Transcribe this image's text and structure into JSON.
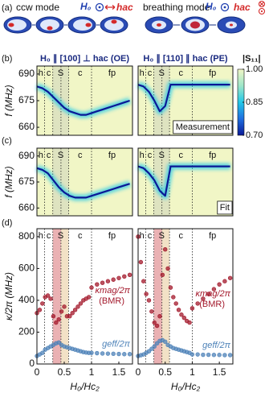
{
  "schematic": {
    "label": "(a)",
    "ccw": "ccw mode",
    "breathing": "breathing mode",
    "field": "H₀",
    "ac": "hac"
  },
  "panels": [
    "(b)",
    "(c)",
    "(d)"
  ],
  "colorbar": {
    "label": "|S₁₁|",
    "lim": [
      0.7,
      1.0
    ],
    "ticks": [
      {
        "value": 1,
        "label": "1.00"
      },
      0.85,
      {
        "value": 0.7,
        "label": "0.70"
      }
    ],
    "colors": [
      "#0a1896",
      "#1f6fe0",
      "#22c8e8",
      "#9ee6c8",
      "#f1f6c6"
    ]
  },
  "field_regions": [
    {
      "label": "h",
      "range": [
        0,
        0.14
      ]
    },
    {
      "label": "c",
      "range": [
        0.14,
        0.29
      ]
    },
    {
      "label": "S",
      "range": [
        0.29,
        0.58
      ]
    },
    {
      "label": "c",
      "range": [
        0.58,
        1.0
      ]
    },
    {
      "label": "fp",
      "range": [
        1.0,
        1.75
      ]
    }
  ],
  "bands": [
    {
      "range": [
        0.29,
        0.44
      ],
      "color": "#e6a3a6"
    },
    {
      "range": [
        0.44,
        0.58
      ],
      "color": "#f0dcbc"
    }
  ],
  "chart_data": [
    {
      "type": "line",
      "title": "H₀ ∥ [100] ⊥ hac (OE)",
      "ylabel": "f (MHz)",
      "x": [
        0,
        0.1,
        0.2,
        0.3,
        0.4,
        0.5,
        0.6,
        0.7,
        0.8,
        0.9,
        1.0,
        1.1,
        1.2,
        1.3,
        1.4,
        1.5,
        1.6,
        1.7
      ],
      "values": [
        683,
        682,
        680,
        677,
        674,
        671,
        669,
        668,
        667,
        667,
        668,
        669,
        670,
        671,
        672,
        673,
        674,
        675
      ],
      "xlim": [
        0,
        1.75
      ],
      "ylim": [
        655.5,
        694.5
      ],
      "yticks": [
        660,
        675,
        690
      ]
    },
    {
      "type": "line",
      "title": "H₀ ∥ [110] ∥ hac (PE)",
      "annotation": "Measurement",
      "x": [
        0,
        0.1,
        0.2,
        0.3,
        0.4,
        0.5,
        0.6,
        0.7,
        0.8,
        0.9,
        1.0,
        1.1,
        1.2,
        1.3,
        1.4,
        1.5,
        1.6,
        1.7
      ],
      "values": [
        684,
        683,
        680,
        675,
        669,
        672,
        684,
        684,
        684,
        684,
        684,
        684,
        684,
        684,
        684,
        684,
        684,
        684
      ],
      "xlim": [
        0,
        1.75
      ],
      "ylim": [
        655.5,
        694.5
      ]
    },
    {
      "type": "line",
      "ylabel": "f (MHz)",
      "x": [
        0,
        0.1,
        0.2,
        0.3,
        0.4,
        0.5,
        0.6,
        0.7,
        0.8,
        0.9,
        1.0,
        1.1,
        1.2,
        1.3,
        1.4,
        1.5,
        1.6,
        1.7
      ],
      "values": [
        683,
        682,
        680,
        676,
        672,
        669,
        667,
        666,
        666,
        666,
        667,
        668,
        669,
        670,
        671,
        672,
        673,
        674
      ],
      "xlim": [
        0,
        1.75
      ],
      "ylim": [
        655.5,
        694.5
      ],
      "yticks": [
        660,
        675,
        690
      ]
    },
    {
      "type": "line",
      "annotation": "Fit",
      "x": [
        0,
        0.1,
        0.2,
        0.3,
        0.4,
        0.5,
        0.6,
        0.7,
        0.8,
        0.9,
        1.0,
        1.1,
        1.2,
        1.3,
        1.4,
        1.5,
        1.6,
        1.7
      ],
      "values": [
        684,
        683,
        680,
        676,
        670,
        667,
        684,
        684,
        684,
        684,
        684,
        684,
        684,
        684,
        684,
        684,
        684,
        684
      ],
      "xlim": [
        0,
        1.75
      ],
      "ylim": [
        655.5,
        694.5
      ]
    },
    {
      "type": "scatter",
      "ylabel": "κ/2π (MHz)",
      "xlabel": "H₀/Hc₂",
      "x": [
        0,
        0.05,
        0.1,
        0.15,
        0.2,
        0.25,
        0.3,
        0.35,
        0.4,
        0.45,
        0.5,
        0.55,
        0.6,
        0.65,
        0.7,
        0.75,
        0.8,
        0.85,
        0.9,
        0.95,
        1.0,
        1.1,
        1.2,
        1.3,
        1.4,
        1.5,
        1.6,
        1.7
      ],
      "series": [
        {
          "name": "κmag/2π",
          "note": "(BMR)",
          "color": "#a3182b",
          "values": [
            320,
            340,
            380,
            420,
            430,
            410,
            300,
            260,
            280,
            330,
            360,
            300,
            300,
            320,
            340,
            360,
            380,
            400,
            410,
            420,
            480,
            500,
            510,
            520,
            530,
            540,
            550,
            560
          ]
        },
        {
          "name": "geff/2π",
          "color": "#4d82b8",
          "values": [
            50,
            60,
            70,
            90,
            100,
            110,
            120,
            130,
            135,
            120,
            110,
            105,
            100,
            95,
            90,
            85,
            80,
            75,
            72,
            70,
            70,
            68,
            66,
            65,
            64,
            63,
            62,
            62
          ]
        }
      ],
      "xlim": [
        0,
        1.75
      ],
      "ylim": [
        0,
        850
      ],
      "xticks": [
        0,
        0.5,
        1,
        1.5
      ],
      "yticks": [
        0,
        200,
        400,
        600,
        800
      ]
    },
    {
      "type": "scatter",
      "xlabel": "H₀/Hc₂",
      "x": [
        0,
        0.05,
        0.1,
        0.15,
        0.2,
        0.25,
        0.3,
        0.35,
        0.4,
        0.45,
        0.5,
        0.55,
        0.6,
        0.65,
        0.7,
        0.75,
        0.8,
        0.85,
        0.9,
        0.95,
        1.0,
        1.1,
        1.2,
        1.3,
        1.4,
        1.5,
        1.6,
        1.7
      ],
      "series": [
        {
          "name": "κmag/2π",
          "note": "(BMR)",
          "color": "#a3182b",
          "values": [
            800,
            640,
            520,
            440,
            400,
            330,
            260,
            240,
            300,
            560,
            720,
            600,
            480,
            420,
            380,
            340,
            310,
            290,
            270,
            260,
            350,
            380,
            410,
            440,
            470,
            500,
            520,
            540
          ]
        },
        {
          "name": "geff/2π",
          "color": "#4d82b8",
          "values": [
            50,
            55,
            60,
            70,
            80,
            95,
            110,
            130,
            145,
            150,
            140,
            120,
            110,
            100,
            95,
            90,
            85,
            80,
            75,
            70,
            60,
            60,
            58,
            58,
            57,
            57,
            56,
            56
          ]
        }
      ],
      "xlim": [
        0,
        1.75
      ],
      "ylim": [
        0,
        850
      ],
      "xticks": [
        0,
        0.5,
        1,
        1.5
      ]
    }
  ]
}
